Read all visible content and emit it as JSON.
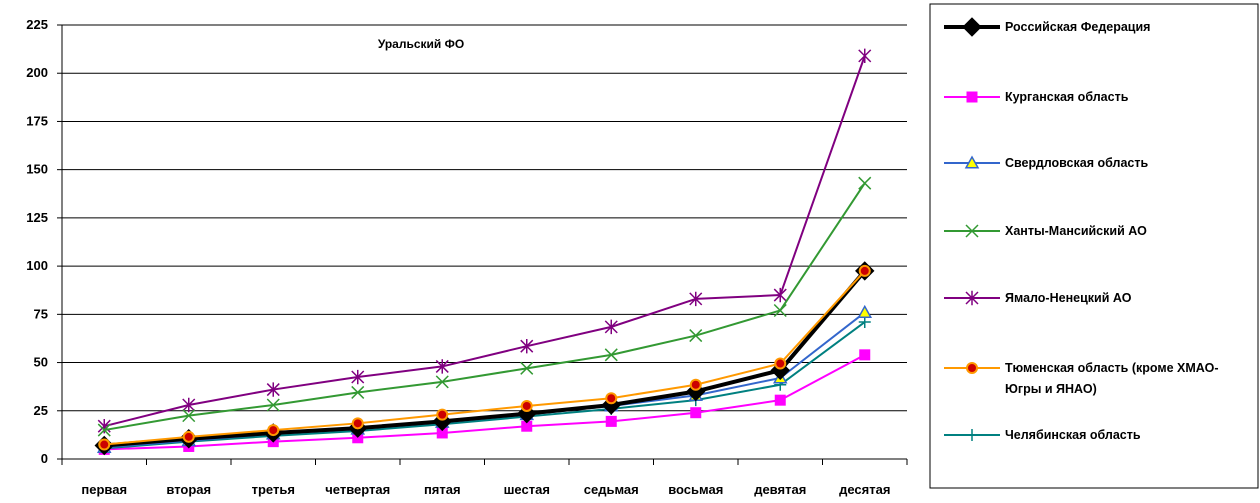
{
  "chart_data": {
    "type": "line",
    "title": "Уральский ФО",
    "xlabel": "",
    "ylabel": "",
    "ylim": [
      0,
      225
    ],
    "yticks": [
      0,
      25,
      50,
      75,
      100,
      125,
      150,
      175,
      200,
      225
    ],
    "grid": true,
    "legend_position": "right",
    "categories": [
      "первая",
      "вторая",
      "третья",
      "четвертая",
      "пятая",
      "шестая",
      "седьмая",
      "восьмая",
      "девятая",
      "десятая"
    ],
    "series": [
      {
        "name": "Российская Федерация",
        "color": "#000000",
        "marker": "diamond",
        "values": [
          7,
          10.5,
          13.5,
          16,
          19.5,
          23.5,
          28,
          35,
          46,
          97.5
        ]
      },
      {
        "name": "Курганская область",
        "color": "#ff00ff",
        "marker": "square",
        "values": [
          5,
          6.5,
          9,
          11,
          13.5,
          17,
          19.5,
          24,
          30.5,
          54
        ]
      },
      {
        "name": "Свердловская область",
        "color": "#3366cc",
        "marker": "triangle",
        "values": [
          6,
          9.5,
          13,
          15.5,
          19,
          23,
          27.5,
          33,
          42,
          76
        ]
      },
      {
        "name": "Ханты-Мансийский АО",
        "color": "#339933",
        "marker": "x",
        "values": [
          15,
          22.5,
          28,
          34.5,
          40,
          47,
          54,
          64,
          77,
          143
        ]
      },
      {
        "name": "Ямало-Ненецкий АО",
        "color": "#800080",
        "marker": "asterisk",
        "values": [
          17,
          28,
          36,
          42.5,
          48,
          58.5,
          68.5,
          83,
          85,
          209
        ]
      },
      {
        "name": "Тюменская область (кроме ХМАО-Югры и ЯНАО)",
        "legend_lines": [
          "Тюменская область (кроме ХМАО-",
          "Югры и ЯНАО)"
        ],
        "color": "#ff9900",
        "marker": "circle",
        "values": [
          7.5,
          11.5,
          15,
          18.5,
          23,
          27.5,
          31.5,
          38.5,
          49.5,
          97.5
        ]
      },
      {
        "name": "Челябинская область",
        "color": "#008080",
        "marker": "plus",
        "values": [
          5.5,
          9,
          12,
          14.5,
          18,
          22,
          26,
          30.5,
          38.5,
          71
        ]
      }
    ]
  }
}
